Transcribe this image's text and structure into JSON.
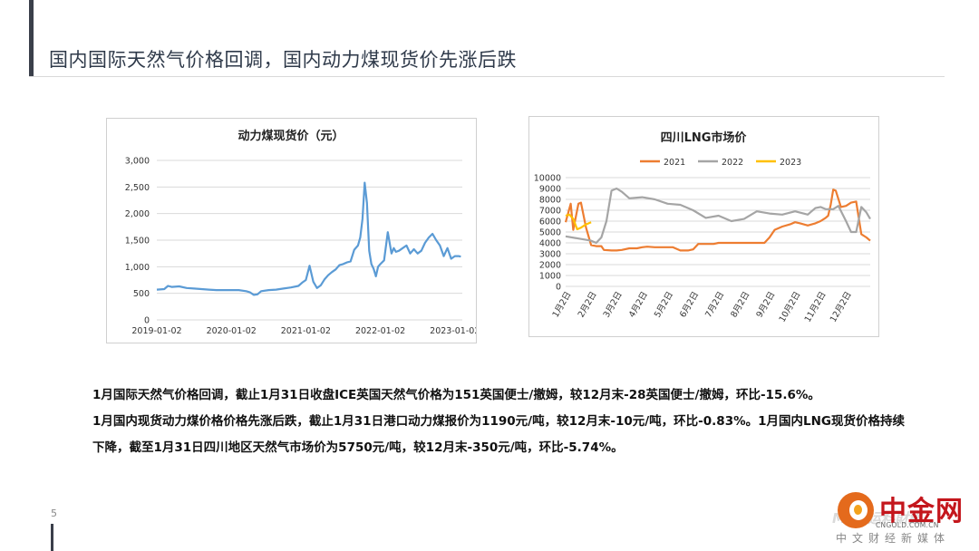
{
  "slide": {
    "title": "国内国际天然气价格回调，国内动力煤现货价先涨后跌",
    "page_number": "5",
    "paragraphs": [
      "1月国际天然气价格回调，截止1月31日收盘ICE英国天然气价格为151英国便士/撤姆，较12月末-28英国便士/撤姆，环比-15.6%。",
      "1月国内现货动力煤价格价格先涨后跌，截止1月31日港口动力煤报价为1190元/吨，较12月末-10元/吨，环比-0.83%。1月国内LNG现货价格持续下降，截至1月31日四川地区天然气市场价为5750元/吨，较12月末-350元/吨，环比-5.74%。"
    ]
  },
  "brand": {
    "name": "中金网",
    "url": "CNGOLD.COM.CN",
    "tagline": "中文财经新媒体",
    "watermark": "Mac 运料財經"
  },
  "colors": {
    "coal_line": "#5b9bd5",
    "lng_2021": "#ed7d31",
    "lng_2022": "#a5a5a5",
    "lng_2023": "#ffc000",
    "grid": "#d9d9d9",
    "axis_text": "#333333"
  },
  "chart_data": [
    {
      "type": "line",
      "title": "动力煤现货价（元）",
      "xlabel": "",
      "ylabel": "",
      "x_tick_labels": [
        "2019-01-02",
        "2020-01-02",
        "2021-01-02",
        "2022-01-02",
        "2023-01-02"
      ],
      "y_tick_labels": [
        "0",
        "500",
        "1,000",
        "1,500",
        "2,000",
        "2,500",
        "3,000"
      ],
      "ylim": [
        0,
        3000
      ],
      "xlim": [
        2019.0,
        2023.1
      ],
      "grid": true,
      "legend": "none",
      "series": [
        {
          "name": "",
          "x": [
            2019.0,
            2019.1,
            2019.15,
            2019.2,
            2019.3,
            2019.4,
            2019.5,
            2019.6,
            2019.7,
            2019.8,
            2019.9,
            2020.0,
            2020.1,
            2020.2,
            2020.25,
            2020.3,
            2020.35,
            2020.4,
            2020.5,
            2020.6,
            2020.7,
            2020.8,
            2020.9,
            2020.95,
            2021.0,
            2021.05,
            2021.1,
            2021.15,
            2021.2,
            2021.25,
            2021.3,
            2021.35,
            2021.4,
            2021.45,
            2021.5,
            2021.55,
            2021.6,
            2021.65,
            2021.7,
            2021.73,
            2021.76,
            2021.79,
            2021.82,
            2021.85,
            2021.88,
            2021.91,
            2021.94,
            2021.97,
            2022.0,
            2022.05,
            2022.1,
            2022.15,
            2022.18,
            2022.21,
            2022.25,
            2022.3,
            2022.35,
            2022.4,
            2022.45,
            2022.5,
            2022.55,
            2022.6,
            2022.65,
            2022.7,
            2022.75,
            2022.8,
            2022.85,
            2022.9,
            2022.95,
            2023.0,
            2023.05,
            2023.08
          ],
          "y": [
            570,
            580,
            640,
            620,
            630,
            600,
            590,
            580,
            570,
            560,
            560,
            560,
            560,
            540,
            520,
            470,
            480,
            540,
            560,
            570,
            590,
            610,
            640,
            700,
            750,
            1020,
            720,
            600,
            650,
            760,
            840,
            900,
            950,
            1030,
            1050,
            1080,
            1100,
            1320,
            1400,
            1550,
            1900,
            2580,
            2200,
            1300,
            1050,
            960,
            820,
            1000,
            1050,
            1120,
            1650,
            1250,
            1350,
            1280,
            1300,
            1350,
            1400,
            1250,
            1330,
            1250,
            1300,
            1450,
            1550,
            1620,
            1500,
            1400,
            1200,
            1350,
            1150,
            1200,
            1200,
            1190
          ]
        }
      ]
    },
    {
      "type": "line",
      "title": "四川LNG市场价",
      "xlabel": "",
      "ylabel": "",
      "categories": [
        "1月2日",
        "2月2日",
        "3月2日",
        "4月2日",
        "5月2日",
        "6月2日",
        "7月2日",
        "8月2日",
        "9月2日",
        "10月2日",
        "11月2日",
        "12月2日"
      ],
      "y_tick_labels": [
        "0",
        "1000",
        "2000",
        "3000",
        "4000",
        "5000",
        "6000",
        "7000",
        "8000",
        "9000",
        "10000"
      ],
      "ylim": [
        0,
        10000
      ],
      "grid": true,
      "legend": "top",
      "series": [
        {
          "name": "2021",
          "x": [
            0,
            0.2,
            0.3,
            0.5,
            0.6,
            0.8,
            1.0,
            1.2,
            1.4,
            1.5,
            1.8,
            2.0,
            2.2,
            2.5,
            2.8,
            3.0,
            3.2,
            3.5,
            3.8,
            4.0,
            4.2,
            4.5,
            4.8,
            5.0,
            5.2,
            5.5,
            5.8,
            6.0,
            6.5,
            7.0,
            7.5,
            7.8,
            8.0,
            8.2,
            8.5,
            8.8,
            9.0,
            9.2,
            9.5,
            9.8,
            10.0,
            10.2,
            10.3,
            10.4,
            10.5,
            10.6,
            10.8,
            11.0,
            11.2,
            11.4,
            11.6,
            11.8,
            11.95
          ],
          "y": [
            5900,
            7600,
            5200,
            7600,
            7700,
            5400,
            3800,
            3700,
            3700,
            3350,
            3300,
            3300,
            3350,
            3500,
            3500,
            3600,
            3650,
            3600,
            3600,
            3600,
            3600,
            3300,
            3300,
            3400,
            3900,
            3900,
            3900,
            4000,
            4000,
            4000,
            4000,
            4000,
            4500,
            5200,
            5500,
            5700,
            5900,
            5800,
            5600,
            5800,
            6000,
            6300,
            6500,
            7500,
            8900,
            8800,
            7300,
            7400,
            7700,
            7800,
            4800,
            4500,
            4200
          ]
        },
        {
          "name": "2022",
          "x": [
            0,
            0.5,
            1.0,
            1.2,
            1.4,
            1.6,
            1.8,
            2.0,
            2.2,
            2.5,
            3.0,
            3.5,
            4.0,
            4.5,
            5.0,
            5.5,
            6.0,
            6.5,
            7.0,
            7.5,
            8.0,
            8.5,
            9.0,
            9.5,
            9.8,
            10.0,
            10.2,
            10.5,
            10.7,
            11.0,
            11.2,
            11.4,
            11.6,
            11.8,
            11.95
          ],
          "y": [
            4600,
            4400,
            4200,
            4000,
            4500,
            6000,
            8800,
            9000,
            8700,
            8100,
            8200,
            8000,
            7600,
            7500,
            7000,
            6300,
            6500,
            6000,
            6200,
            6900,
            6700,
            6600,
            6900,
            6600,
            7200,
            7300,
            7100,
            7100,
            7400,
            6000,
            5000,
            5000,
            7300,
            6800,
            6200
          ]
        },
        {
          "name": "2023",
          "x": [
            0,
            0.15,
            0.3,
            0.45,
            0.6,
            0.8,
            1.0
          ],
          "y": [
            6500,
            6600,
            6200,
            5250,
            5400,
            5700,
            5900
          ]
        }
      ]
    }
  ]
}
